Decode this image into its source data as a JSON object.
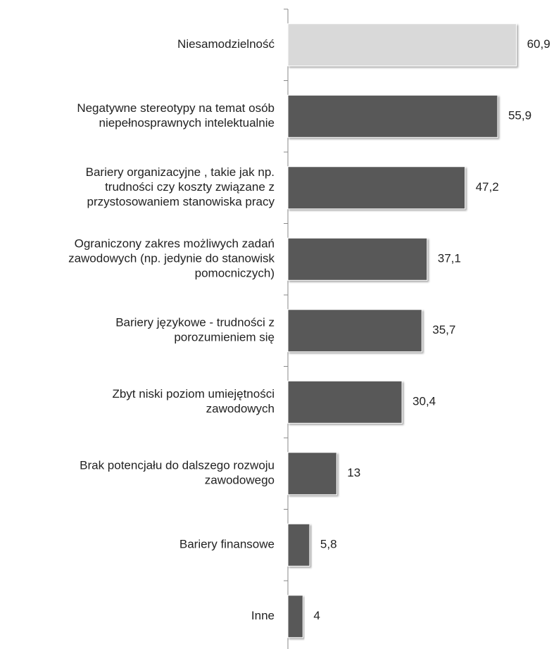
{
  "chart_data": {
    "type": "bar",
    "orientation": "horizontal",
    "categories": [
      "Niesamodzielność",
      "Negatywne stereotypy na temat osób\nniepełnosprawnych intelektualnie",
      "Bariery organizacyjne , takie jak np.\ntrudności czy koszty związane z\nprzystosowaniem stanowiska pracy",
      "Ograniczony zakres możliwych zadań\nzawodowych (np. jedynie do stanowisk\npomocniczych)",
      "Bariery językowe - trudności z\nporozumieniem się",
      "Zbyt niski poziom umiejętności\nzawodowych",
      "Brak potencjału do dalszego rozwoju\nzawodowego",
      "Bariery finansowe",
      "Inne"
    ],
    "values": [
      60.9,
      55.9,
      47.2,
      37.1,
      35.7,
      30.4,
      13,
      5.8,
      4
    ],
    "value_labels": [
      "60,9",
      "55,9",
      "47,2",
      "37,1",
      "35,7",
      "30,4",
      "13",
      "5,8",
      "4"
    ],
    "colors": [
      "#d9d9d9",
      "#595959",
      "#595959",
      "#595959",
      "#595959",
      "#595959",
      "#595959",
      "#595959",
      "#595959"
    ]
  }
}
